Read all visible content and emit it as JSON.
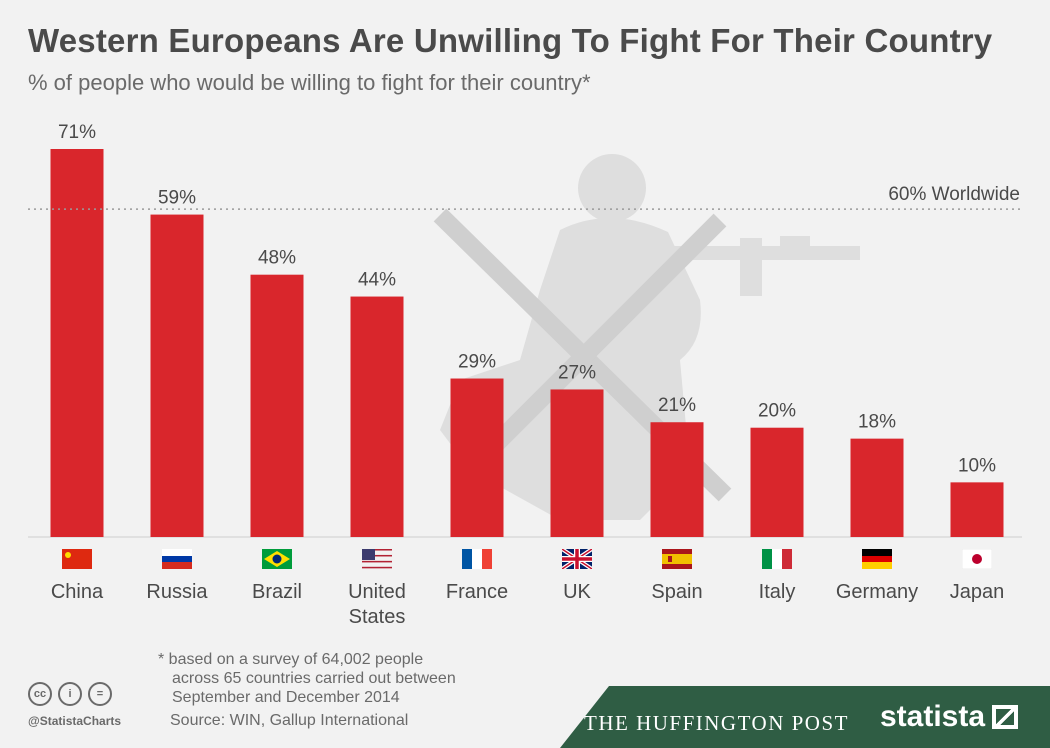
{
  "title": "Western Europeans Are Unwilling To Fight For Their Country",
  "subtitle": "% of people who would be willing to fight for their country*",
  "footnote_lines": [
    "* based on a survey of 64,002 people",
    "across 65 countries carried out between",
    "September and December 2014"
  ],
  "source": "Source: WIN, Gallup International",
  "handle": "@StatistaCharts",
  "huffington": "THE HUFFINGTON POST",
  "statista": "statista",
  "colors": {
    "bar": "#d9262c",
    "text": "#4a4a4a",
    "footer": "#2f5d44",
    "silhouette": "#dedede"
  },
  "chart_data": {
    "type": "bar",
    "categories": [
      "China",
      "Russia",
      "Brazil",
      "United States",
      "France",
      "UK",
      "Spain",
      "Italy",
      "Germany",
      "Japan"
    ],
    "values": [
      71,
      59,
      48,
      44,
      29,
      27,
      21,
      20,
      18,
      10
    ],
    "value_labels": [
      "71%",
      "59%",
      "48%",
      "44%",
      "29%",
      "27%",
      "21%",
      "20%",
      "18%",
      "10%"
    ],
    "reference_line": {
      "value": 60,
      "label": "60% Worldwide"
    },
    "title": "Western Europeans Are Unwilling To Fight For Their Country",
    "ylim": [
      0,
      71
    ],
    "grid": false
  }
}
